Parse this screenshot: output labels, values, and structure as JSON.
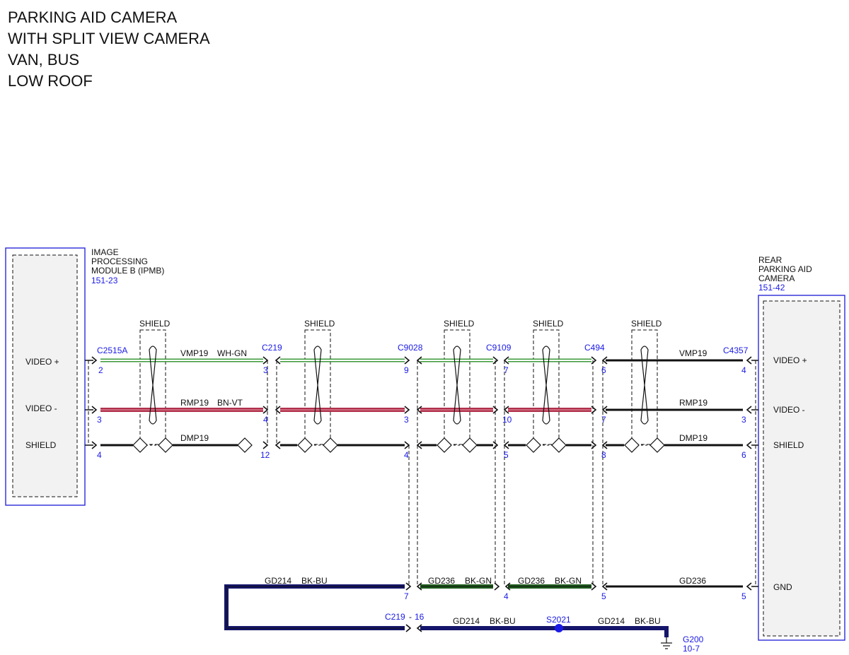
{
  "title_lines": [
    "PARKING AID CAMERA",
    "WITH SPLIT VIEW CAMERA",
    "VAN, BUS",
    "LOW ROOF"
  ],
  "left_module": {
    "name_lines": [
      "IMAGE",
      "PROCESSING",
      "MODULE B (IPMB)"
    ],
    "ref": "151-23",
    "pins": [
      "VIDEO +",
      "VIDEO -",
      "SHIELD"
    ]
  },
  "right_module": {
    "name_lines": [
      "REAR",
      "PARKING AID",
      "CAMERA"
    ],
    "ref": "151-42",
    "pins": [
      "VIDEO +",
      "VIDEO -",
      "SHIELD",
      "GND"
    ]
  },
  "shield_label": "SHIELD",
  "connectors": [
    "C2515A",
    "C219",
    "C9028",
    "C9109",
    "C494",
    "C4357"
  ],
  "pin_numbers": {
    "video_plus": [
      "2",
      "3",
      "9",
      "7",
      "6",
      "4"
    ],
    "video_minus": [
      "3",
      "4",
      "3",
      "10",
      "7",
      "3"
    ],
    "shield": [
      "4",
      "12",
      "4",
      "5",
      "8",
      "6"
    ],
    "ground": [
      "7",
      "4",
      "5",
      "5"
    ]
  },
  "wires": {
    "vmp_left": "VMP19",
    "vmp_left_color": "WH-GN",
    "vmp_right": "VMP19",
    "rmp_left": "RMP19",
    "rmp_left_color": "BN-VT",
    "rmp_right": "RMP19",
    "dmp_left": "DMP19",
    "dmp_right": "DMP19",
    "gd214": "GD214",
    "gd214_color": "BK-BU",
    "gd236a": "GD236",
    "gd236a_color": "BK-GN",
    "gd236b": "GD236",
    "gd236b_color": "BK-GN",
    "gd236_right": "GD236",
    "gd214_bottom_a": "GD214",
    "gd214_bottom_a_color": "BK-BU",
    "gd214_bottom_b": "GD214",
    "gd214_bottom_b_color": "BK-BU"
  },
  "bottom_connector": {
    "name": "C219",
    "dash": "-",
    "pin": "16"
  },
  "splice": "S2021",
  "ground_point": {
    "name": "G200",
    "ref": "10-7"
  },
  "colors": {
    "module_border": "#2b2bd9",
    "blue_text": "#1a1ae6",
    "white_green_wire": "#3a9a3a",
    "brown_violet_wire": "#b0304a",
    "black_blue_wire": "#15156b",
    "black_green_wire": "#1d5a1d"
  }
}
